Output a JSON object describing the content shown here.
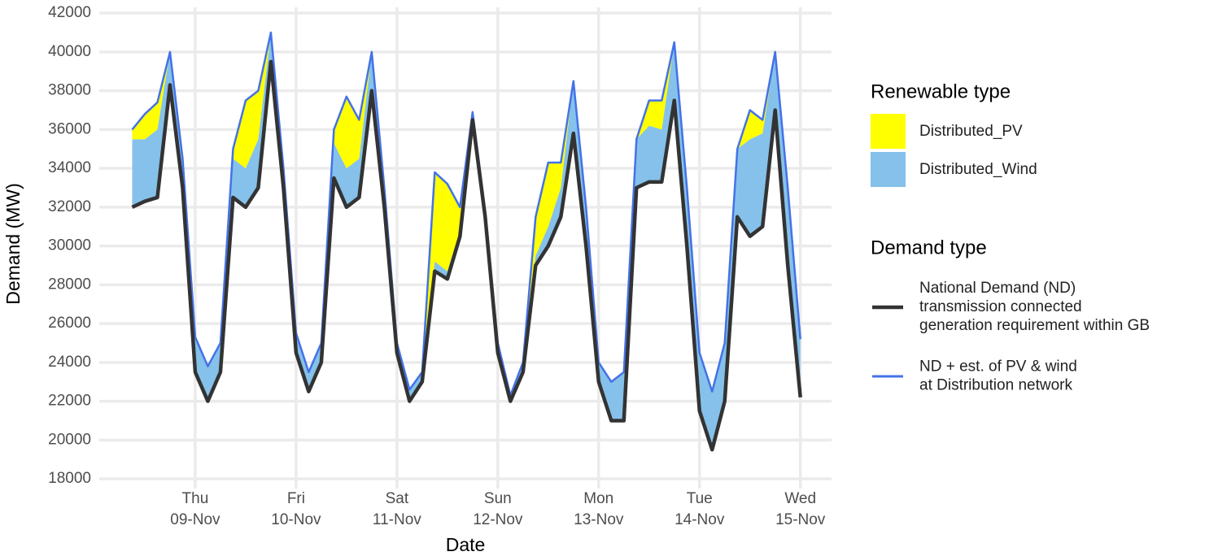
{
  "chart_data": {
    "type": "area",
    "x_label": "Date",
    "y_label": "Demand (MW)",
    "area_legend_title": "Renewable type",
    "line_legend_title": "Demand type",
    "grid": true,
    "legend_position": "right",
    "x": [
      "11-08 09:00",
      "11-08 12:00",
      "11-08 15:00",
      "11-08 18:00",
      "11-08 21:00",
      "11-09 00:00",
      "11-09 03:00",
      "11-09 06:00",
      "11-09 09:00",
      "11-09 12:00",
      "11-09 15:00",
      "11-09 18:00",
      "11-09 21:00",
      "11-10 00:00",
      "11-10 03:00",
      "11-10 06:00",
      "11-10 09:00",
      "11-10 12:00",
      "11-10 15:00",
      "11-10 18:00",
      "11-10 21:00",
      "11-11 00:00",
      "11-11 03:00",
      "11-11 06:00",
      "11-11 09:00",
      "11-11 12:00",
      "11-11 15:00",
      "11-11 18:00",
      "11-11 21:00",
      "11-12 00:00",
      "11-12 03:00",
      "11-12 06:00",
      "11-12 09:00",
      "11-12 12:00",
      "11-12 15:00",
      "11-12 18:00",
      "11-12 21:00",
      "11-13 00:00",
      "11-13 03:00",
      "11-13 06:00",
      "11-13 09:00",
      "11-13 12:00",
      "11-13 15:00",
      "11-13 18:00",
      "11-13 21:00",
      "11-14 00:00",
      "11-14 03:00",
      "11-14 06:00",
      "11-14 09:00",
      "11-14 12:00",
      "11-14 15:00",
      "11-14 18:00",
      "11-14 21:00",
      "11-15 00:00"
    ],
    "xlim": [
      "11-08 01:10",
      "11-15 07:25"
    ],
    "xticks": [
      {
        "value": "11-09 00:00",
        "label": "Thu\n09-Nov"
      },
      {
        "value": "11-10 00:00",
        "label": "Fri\n10-Nov"
      },
      {
        "value": "11-11 00:00",
        "label": "Sat\n11-Nov"
      },
      {
        "value": "11-12 00:00",
        "label": "Sun\n12-Nov"
      },
      {
        "value": "11-13 00:00",
        "label": "Mon\n13-Nov"
      },
      {
        "value": "11-14 00:00",
        "label": "Tue\n14-Nov"
      },
      {
        "value": "11-15 00:00",
        "label": "Wed\n15-Nov"
      }
    ],
    "ylim": [
      17500,
      42300
    ],
    "yticks": [
      18000,
      20000,
      22000,
      24000,
      26000,
      28000,
      30000,
      32000,
      34000,
      36000,
      38000,
      40000,
      42000
    ],
    "series": [
      {
        "name": "Distributed_PV",
        "kind": "area",
        "color": "#ffff00",
        "values": [
          500,
          1300,
          1400,
          0,
          0,
          0,
          0,
          0,
          500,
          3500,
          2500,
          0,
          0,
          0,
          0,
          0,
          700,
          3700,
          2000,
          0,
          0,
          0,
          0,
          0,
          4600,
          4500,
          1200,
          0,
          0,
          0,
          0,
          0,
          2000,
          3300,
          1300,
          0,
          0,
          0,
          0,
          0,
          0,
          1300,
          1500,
          0,
          0,
          0,
          0,
          0,
          0,
          1500,
          700,
          0,
          0,
          0
        ]
      },
      {
        "name": "Distributed_Wind",
        "kind": "area",
        "color": "#85c1ea",
        "values": [
          3500,
          3200,
          3500,
          1700,
          1500,
          1800,
          1800,
          1500,
          2000,
          2000,
          2500,
          1500,
          1000,
          1000,
          1000,
          1000,
          1800,
          2000,
          2000,
          2000,
          1000,
          500,
          600,
          500,
          500,
          400,
          300,
          400,
          300,
          500,
          300,
          500,
          500,
          1000,
          1500,
          2700,
          2000,
          1000,
          2000,
          2500,
          2500,
          2900,
          2700,
          3000,
          3000,
          3000,
          3000,
          3000,
          3500,
          5000,
          4800,
          3000,
          4000,
          3000
        ]
      },
      {
        "name": "National Demand (ND)\ntransmission connected\ngeneration requirement within GB",
        "kind": "line",
        "color": "#333333",
        "values": [
          32000,
          32300,
          32500,
          38300,
          33000,
          23500,
          22000,
          23500,
          32500,
          32000,
          33000,
          39500,
          33000,
          24500,
          22500,
          24000,
          33500,
          32000,
          32500,
          38000,
          32000,
          24500,
          22000,
          23000,
          28700,
          28300,
          30500,
          36500,
          31500,
          24500,
          22000,
          23500,
          29000,
          30000,
          31500,
          35800,
          30000,
          23000,
          21000,
          21000,
          33000,
          33300,
          33300,
          37500,
          30000,
          21500,
          19500,
          22000,
          31500,
          30500,
          31000,
          37000,
          29000,
          22200
        ]
      },
      {
        "name": "ND + est. of PV & wind\nat Distribution network",
        "kind": "line",
        "color": "#4472e8",
        "values": [
          36000,
          36800,
          37400,
          40000,
          34500,
          25300,
          23800,
          25000,
          35000,
          37500,
          38000,
          41000,
          34000,
          25500,
          23500,
          25000,
          36000,
          37700,
          36500,
          40000,
          33000,
          25000,
          22600,
          23500,
          33800,
          33200,
          32000,
          36900,
          31800,
          25000,
          22300,
          24000,
          31500,
          34300,
          34300,
          38500,
          32000,
          24000,
          23000,
          23500,
          35500,
          37500,
          37500,
          40500,
          33000,
          24500,
          22500,
          25000,
          35000,
          37000,
          36500,
          40000,
          33000,
          25200
        ]
      }
    ]
  }
}
